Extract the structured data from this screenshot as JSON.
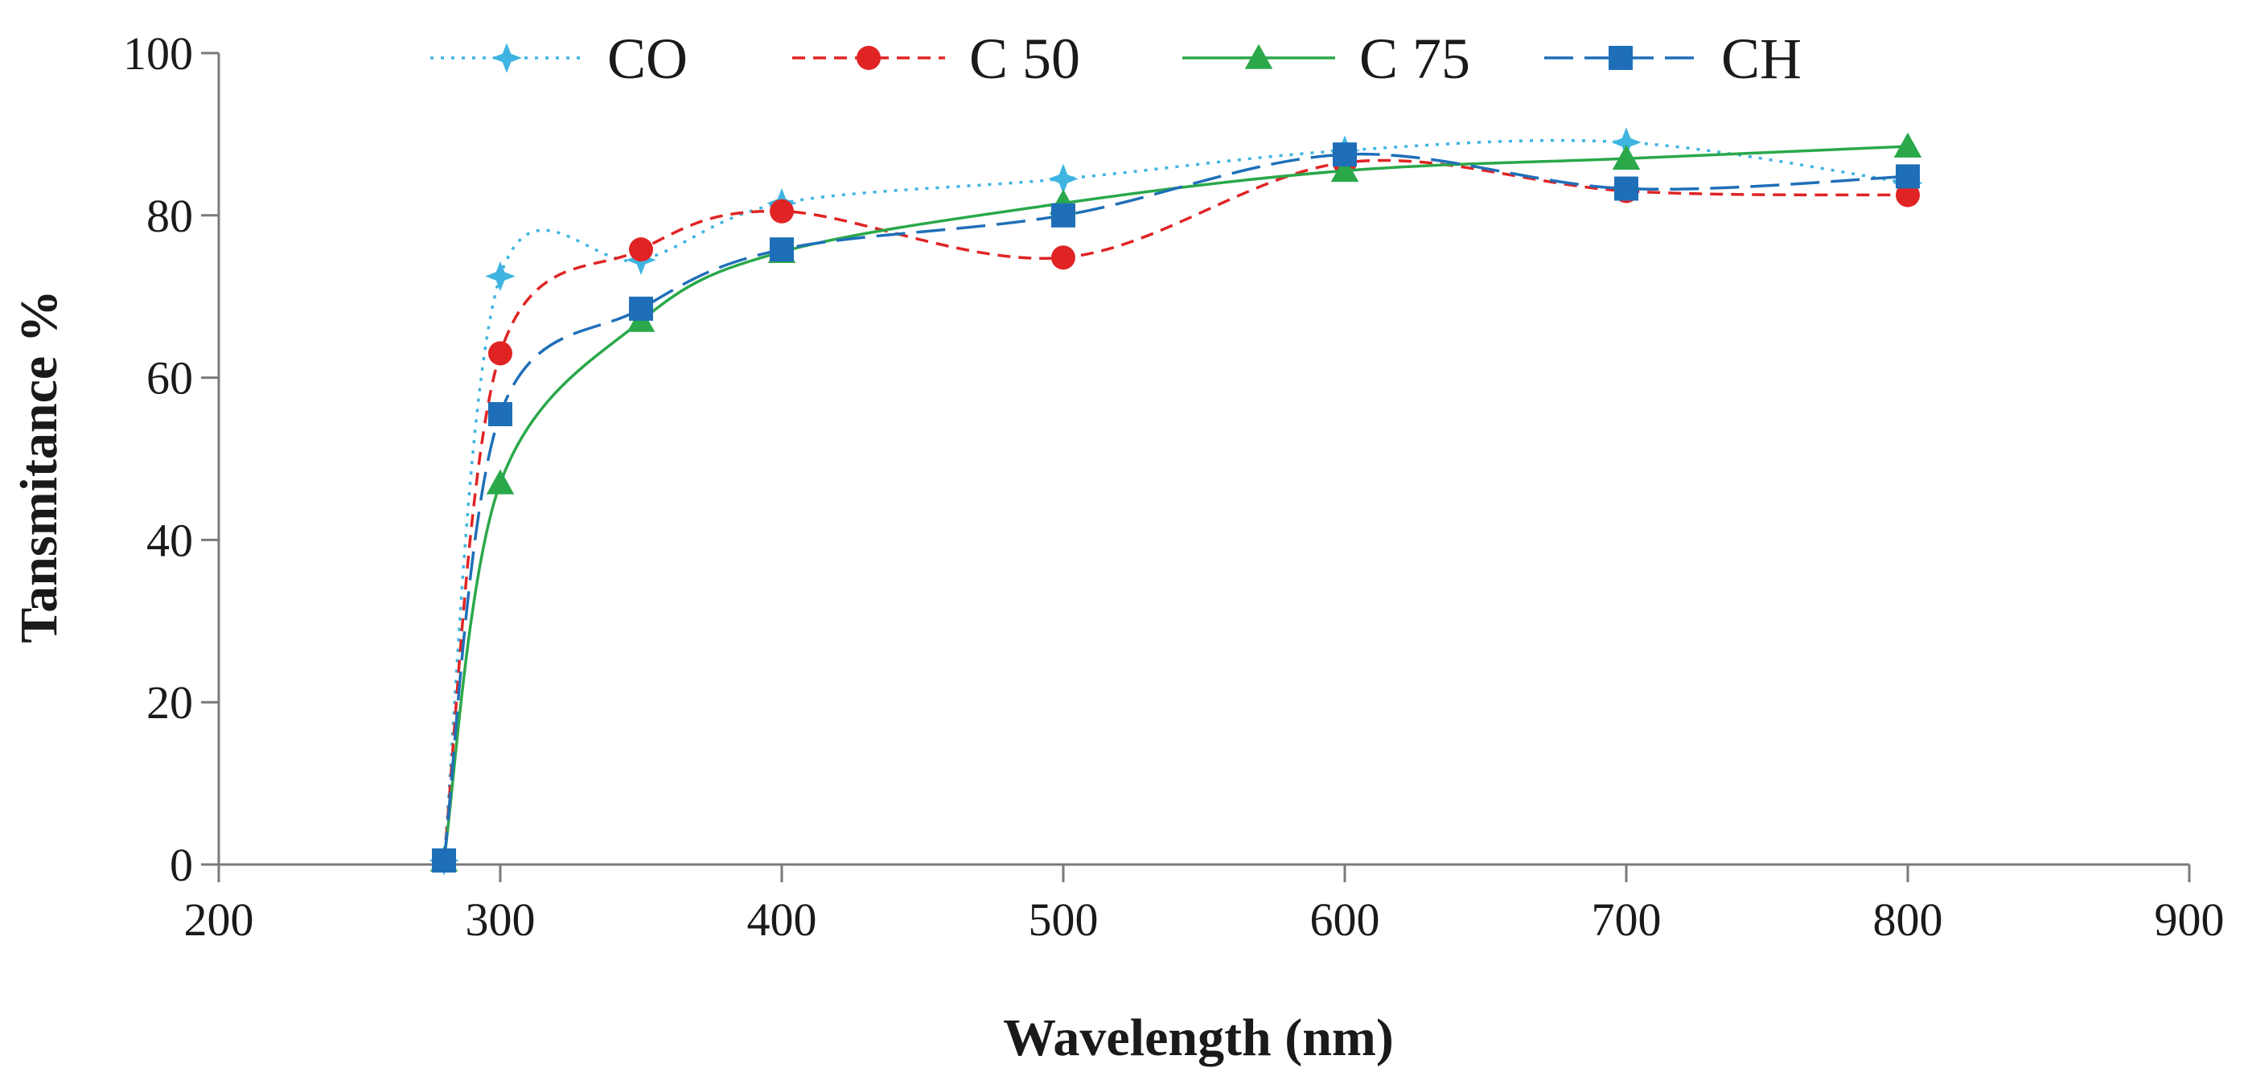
{
  "chart_data": {
    "type": "line",
    "title": "",
    "xlabel": "Wavelength (nm)",
    "ylabel": "Tansmitance %",
    "xlim": [
      200,
      900
    ],
    "ylim": [
      0,
      100
    ],
    "xticks": [
      "200",
      "300",
      "400",
      "500",
      "600",
      "700",
      "800",
      "900"
    ],
    "yticks": [
      "0",
      "20",
      "40",
      "60",
      "80",
      "100"
    ],
    "legend_position": "top",
    "series": [
      {
        "name": "CO",
        "color": "#3fb4e0",
        "dash": "dotted",
        "marker": "star",
        "x": [
          280,
          300,
          350,
          400,
          500,
          600,
          700,
          800
        ],
        "y": [
          0.5,
          72.5,
          74.5,
          81.5,
          84.5,
          88,
          89,
          84
        ]
      },
      {
        "name": "C 50",
        "color": "#e02424",
        "dash": "dashed",
        "marker": "circle",
        "x": [
          280,
          300,
          350,
          400,
          500,
          600,
          700,
          800
        ],
        "y": [
          0.5,
          63,
          75.8,
          80.5,
          74.8,
          86.5,
          83,
          82.5
        ]
      },
      {
        "name": "C 75",
        "color": "#2aa84a",
        "dash": "solid",
        "marker": "triangle",
        "x": [
          280,
          300,
          350,
          400,
          500,
          600,
          700,
          800
        ],
        "y": [
          0.5,
          47,
          67,
          75.5,
          81.5,
          85.5,
          87,
          88.5
        ]
      },
      {
        "name": "CH",
        "color": "#1f6fb8",
        "dash": "longdash",
        "marker": "square",
        "x": [
          280,
          300,
          350,
          400,
          500,
          600,
          700,
          800
        ],
        "y": [
          0.5,
          55.5,
          68.5,
          75.8,
          80,
          87.5,
          83.3,
          84.8
        ]
      }
    ]
  }
}
